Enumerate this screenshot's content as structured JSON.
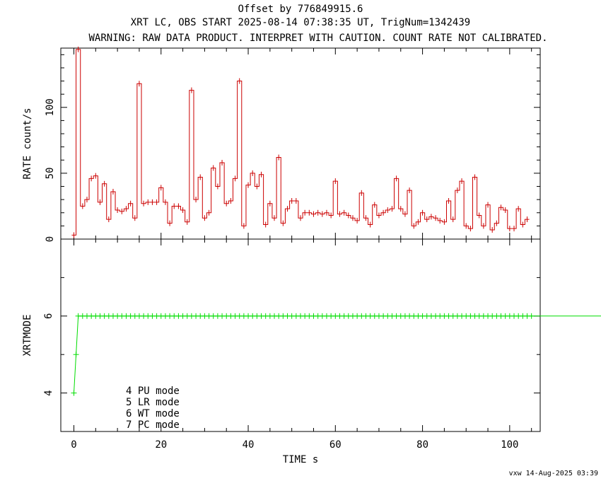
{
  "header": {
    "line1": "Offset by 776849915.6",
    "line2": "XRT LC, OBS START 2025-08-14 07:38:35 UT, TrigNum=1342439",
    "line3": "WARNING: RAW DATA PRODUCT. INTERPRET WITH CAUTION. COUNT RATE NOT CALIBRATED."
  },
  "footer": "vxw 14-Aug-2025 03:39",
  "chart_data": [
    {
      "type": "line",
      "title": "",
      "xlabel": "TIME  s",
      "ylabel": "RATE  count/s",
      "xlim": [
        -3,
        107
      ],
      "ylim": [
        0,
        145
      ],
      "xticks": [
        0,
        20,
        40,
        60,
        80,
        100
      ],
      "xtick_labels": [
        "0",
        "20",
        "40",
        "60",
        "80",
        "100"
      ],
      "yticks": [
        0,
        50,
        100
      ],
      "ytick_labels": [
        "0",
        "50",
        "100"
      ],
      "color": "#cc0000",
      "bin_width": 1,
      "x": [
        0,
        1,
        2,
        3,
        4,
        5,
        6,
        7,
        8,
        9,
        10,
        11,
        12,
        13,
        14,
        15,
        16,
        17,
        18,
        19,
        20,
        21,
        22,
        23,
        24,
        25,
        26,
        27,
        28,
        29,
        30,
        31,
        32,
        33,
        34,
        35,
        36,
        37,
        38,
        39,
        40,
        41,
        42,
        43,
        44,
        45,
        46,
        47,
        48,
        49,
        50,
        51,
        52,
        53,
        54,
        55,
        56,
        57,
        58,
        59,
        60,
        61,
        62,
        63,
        64,
        65,
        66,
        67,
        68,
        69,
        70,
        71,
        72,
        73,
        74,
        75,
        76,
        77,
        78,
        79,
        80,
        81,
        82,
        83,
        84,
        85,
        86,
        87,
        88,
        89,
        90,
        91,
        92,
        93,
        94,
        95,
        96,
        97,
        98,
        99,
        100,
        101,
        102,
        103,
        104
      ],
      "values": [
        3,
        144,
        25,
        30,
        46,
        48,
        28,
        42,
        15,
        36,
        22,
        21,
        23,
        27,
        16,
        118,
        27,
        28,
        28,
        28,
        39,
        28,
        12,
        25,
        25,
        22,
        13,
        113,
        30,
        47,
        16,
        20,
        54,
        40,
        58,
        27,
        29,
        46,
        120,
        10,
        41,
        50,
        40,
        49,
        11,
        27,
        16,
        62,
        12,
        23,
        29,
        29,
        16,
        20,
        20,
        19,
        20,
        19,
        20,
        18,
        44,
        19,
        20,
        18,
        16,
        14,
        35,
        16,
        11,
        26,
        18,
        20,
        22,
        23,
        46,
        23,
        19,
        37,
        10,
        13,
        20,
        15,
        17,
        16,
        14,
        13,
        29,
        15,
        37,
        44,
        10,
        8,
        47,
        18,
        10,
        26,
        7,
        12,
        24,
        22,
        8,
        8,
        23,
        11,
        15
      ]
    },
    {
      "type": "line",
      "title": "",
      "xlabel": "TIME  s",
      "ylabel": "XRTMODE",
      "xlim": [
        -3,
        107
      ],
      "ylim": [
        3,
        8
      ],
      "yticks": [
        4,
        6
      ],
      "ytick_labels": [
        "4",
        "6"
      ],
      "color": "#00dd00",
      "x_start": 0,
      "x_step": 1,
      "values_note_first": [
        4,
        5
      ],
      "values": [
        4,
        5,
        6,
        6,
        6,
        6,
        6,
        6,
        6,
        6,
        6,
        6,
        6,
        6,
        6,
        6,
        6,
        6,
        6,
        6,
        6,
        6,
        6,
        6,
        6,
        6,
        6,
        6,
        6,
        6,
        6,
        6,
        6,
        6,
        6,
        6,
        6,
        6,
        6,
        6,
        6,
        6,
        6,
        6,
        6,
        6,
        6,
        6,
        6,
        6,
        6,
        6,
        6,
        6,
        6,
        6,
        6,
        6,
        6,
        6,
        6,
        6,
        6,
        6,
        6,
        6,
        6,
        6,
        6,
        6,
        6,
        6,
        6,
        6,
        6,
        6,
        6,
        6,
        6,
        6,
        6,
        6,
        6,
        6,
        6,
        6,
        6,
        6,
        6,
        6,
        6,
        6,
        6,
        6,
        6,
        6,
        6,
        6,
        6,
        6,
        6,
        6,
        6,
        6,
        6,
        6,
        6,
        6,
        6,
        6,
        6,
        6,
        6,
        6,
        6,
        6,
        6,
        6,
        6,
        6,
        6,
        6,
        6,
        6,
        6,
        6
      ],
      "legend": [
        "4 PU mode",
        "5 LR mode",
        "6 WT mode",
        "7 PC mode"
      ]
    }
  ]
}
